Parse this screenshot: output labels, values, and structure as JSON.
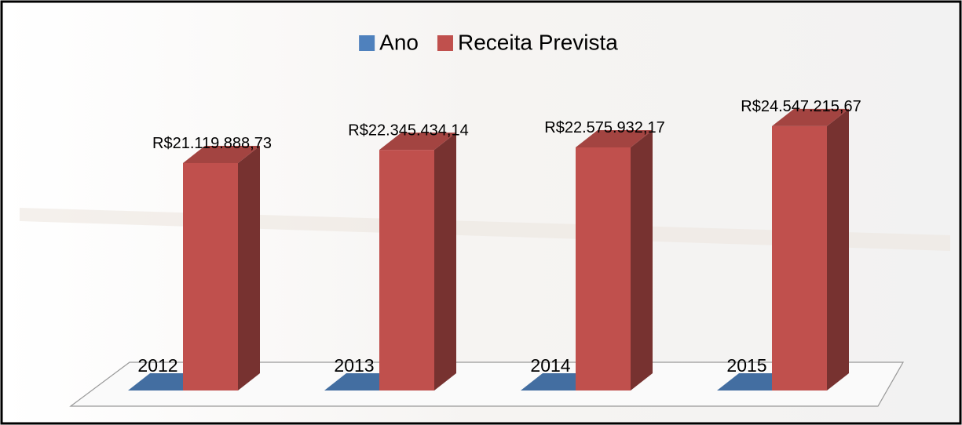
{
  "chart_data": {
    "type": "bar3d",
    "categories": [
      null,
      null,
      null,
      null
    ],
    "series": [
      {
        "name": "Ano",
        "color": "#4f81bd",
        "values": [
          2012,
          2013,
          2014,
          2015
        ]
      },
      {
        "name": "Receita Prevista",
        "color": "#c0504d",
        "values": [
          21119888.73,
          22345434.14,
          22575932.17,
          24547215.67
        ],
        "value_labels": [
          "R$21.119.888,73",
          "R$22.345.434,14",
          "R$22.575.932,17",
          "R$24.547.215,67"
        ]
      }
    ],
    "ylim": [
      0,
      30000000
    ],
    "legend": "top"
  }
}
